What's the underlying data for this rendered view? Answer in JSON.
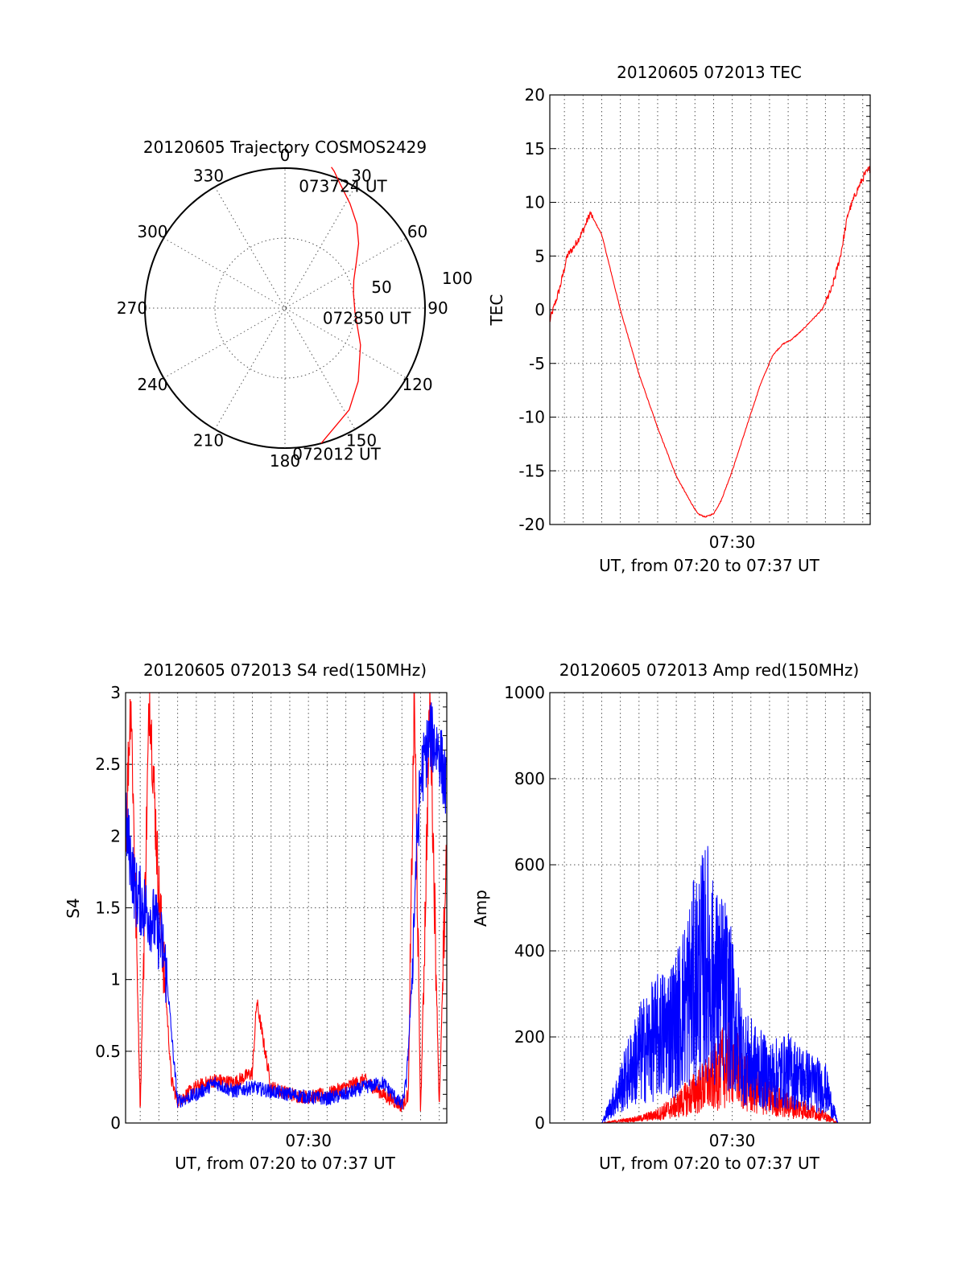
{
  "chart_data": [
    {
      "type": "polar",
      "title": "20120605 Trajectory COSMOS2429",
      "azimuth_labels": [
        "0",
        "30",
        "60",
        "90",
        "120",
        "150",
        "180",
        "210",
        "240",
        "270",
        "300",
        "330"
      ],
      "radius_labels": [
        "50",
        "100"
      ],
      "rlim": [
        0,
        100
      ],
      "grid": true,
      "series": [
        {
          "color": "#ff0000",
          "azimuth": [
            165.0,
            147.8,
            135.0,
            116.0,
            93.0,
            78.0,
            68.0,
            56.8,
            48.7,
            40.5,
            31.8,
            24.0,
            19.7,
            18.2
          ],
          "radius": [
            100,
            86,
            74,
            60,
            50,
            50,
            53,
            61,
            70,
            79,
            88,
            97,
            104,
            106
          ]
        }
      ],
      "annotations": [
        {
          "text": "073724 UT",
          "azimuth": 26,
          "radius": 97
        },
        {
          "text": "072850 UT",
          "azimuth": 97,
          "radius": 60
        },
        {
          "text": "072012 UT",
          "azimuth": 160,
          "radius": 111
        }
      ]
    },
    {
      "type": "line",
      "title": "20120605 072013 TEC",
      "xlabel": "UT, from 07:20 to 07:37 UT",
      "ylabel": "TEC",
      "xlim": [
        "07:20:13",
        "07:37:24"
      ],
      "x_tick_labels": [
        "07:30"
      ],
      "ylim": [
        -20,
        20
      ],
      "yticks": [
        -20,
        -15,
        -10,
        -5,
        0,
        5,
        10,
        15,
        20
      ],
      "grid": true,
      "series": [
        {
          "color": "#ff0000",
          "x": [
            "07:20:13",
            "07:20:45",
            "07:21:09",
            "07:21:34",
            "07:22:02",
            "07:22:23",
            "07:23:00",
            "07:24:00",
            "07:25:00",
            "07:26:00",
            "07:27:00",
            "07:27:44",
            "07:28:09",
            "07:28:33",
            "07:29:00",
            "07:29:24",
            "07:30:00",
            "07:30:45",
            "07:31:30",
            "07:32:11",
            "07:32:43",
            "07:33:10",
            "07:33:42",
            "07:34:15",
            "07:34:49",
            "07:35:21",
            "07:35:48",
            "07:36:13",
            "07:36:40",
            "07:37:05",
            "07:37:24"
          ],
          "y": [
            -1,
            2,
            5,
            6,
            7.5,
            9,
            7,
            0,
            -6,
            -11,
            -15.5,
            -17.8,
            -19,
            -19.3,
            -19,
            -17.8,
            -15,
            -11,
            -7,
            -4.2,
            -3.2,
            -2.8,
            -2,
            -1,
            0,
            2,
            5,
            9,
            11,
            12.5,
            13.2
          ]
        }
      ]
    },
    {
      "type": "line",
      "title": "20120605 072013 S4 red(150MHz)",
      "xlabel": "UT, from 07:20 to 07:37 UT",
      "ylabel": "S4",
      "xlim": [
        "07:20:13",
        "07:37:24"
      ],
      "x_tick_labels": [
        "07:30"
      ],
      "ylim": [
        0,
        3
      ],
      "yticks": [
        0,
        0.5,
        1,
        1.5,
        2,
        2.5,
        3
      ],
      "grid": true,
      "series": [
        {
          "color": "#ff0000",
          "x": [
            "07:20:13",
            "07:20:30",
            "07:21:00",
            "07:21:30",
            "07:22:00",
            "07:22:25",
            "07:22:40",
            "07:23:00",
            "07:24:00",
            "07:25:00",
            "07:26:00",
            "07:27:00",
            "07:27:14",
            "07:28:00",
            "07:29:00",
            "07:30:00",
            "07:31:00",
            "07:32:00",
            "07:33:00",
            "07:34:00",
            "07:35:00",
            "07:35:21",
            "07:35:40",
            "07:36:00",
            "07:36:30",
            "07:37:00",
            "07:37:24"
          ],
          "y": [
            2.0,
            3.0,
            0.1,
            3.0,
            1.6,
            0.8,
            0.3,
            0.15,
            0.25,
            0.3,
            0.28,
            0.35,
            0.85,
            0.25,
            0.2,
            0.18,
            0.2,
            0.25,
            0.3,
            0.2,
            0.12,
            0.2,
            3.0,
            0.05,
            3.0,
            0.1,
            2.0
          ]
        },
        {
          "color": "#0000ff",
          "x": [
            "07:20:13",
            "07:20:45",
            "07:21:15",
            "07:21:45",
            "07:22:15",
            "07:22:30",
            "07:22:45",
            "07:23:00",
            "07:24:00",
            "07:25:00",
            "07:26:00",
            "07:27:00",
            "07:28:00",
            "07:29:00",
            "07:30:00",
            "07:31:00",
            "07:32:00",
            "07:33:00",
            "07:34:00",
            "07:35:00",
            "07:35:15",
            "07:35:30",
            "07:35:45",
            "07:36:00",
            "07:36:30",
            "07:37:00",
            "07:37:24"
          ],
          "y": [
            2.1,
            1.6,
            1.5,
            1.4,
            1.2,
            0.9,
            0.5,
            0.15,
            0.2,
            0.28,
            0.22,
            0.25,
            0.22,
            0.2,
            0.18,
            0.17,
            0.2,
            0.25,
            0.28,
            0.12,
            0.3,
            0.9,
            1.8,
            2.4,
            2.7,
            2.6,
            2.3
          ]
        }
      ]
    },
    {
      "type": "line",
      "title": "20120605 072013 Amp red(150MHz)",
      "xlabel": "UT, from 07:20 to 07:37 UT",
      "ylabel": "Amp",
      "xlim": [
        "07:20:13",
        "07:37:24"
      ],
      "x_tick_labels": [
        "07:30"
      ],
      "ylim": [
        0,
        1000
      ],
      "yticks": [
        0,
        200,
        400,
        600,
        800,
        1000
      ],
      "grid": true,
      "series": [
        {
          "color": "#ff0000",
          "x": [
            "07:20:13",
            "07:22:00",
            "07:23:00",
            "07:24:00",
            "07:25:00",
            "07:26:00",
            "07:27:00",
            "07:28:00",
            "07:29:00",
            "07:29:30",
            "07:30:00",
            "07:30:30",
            "07:31:00",
            "07:32:00",
            "07:33:00",
            "07:34:00",
            "07:35:00",
            "07:35:40",
            "07:36:00",
            "07:37:24"
          ],
          "y": [
            0,
            0,
            0,
            5,
            10,
            20,
            40,
            70,
            100,
            130,
            150,
            110,
            80,
            60,
            40,
            30,
            15,
            0,
            0,
            0
          ]
        },
        {
          "color": "#0000ff",
          "x": [
            "07:20:13",
            "07:22:00",
            "07:23:00",
            "07:23:30",
            "07:24:00",
            "07:25:00",
            "07:26:00",
            "07:27:00",
            "07:28:00",
            "07:28:40",
            "07:29:00",
            "07:29:40",
            "07:30:00",
            "07:30:40",
            "07:31:00",
            "07:32:00",
            "07:33:00",
            "07:34:00",
            "07:35:00",
            "07:35:40",
            "07:36:00",
            "07:37:24"
          ],
          "y": [
            0,
            0,
            0,
            40,
            80,
            160,
            200,
            230,
            330,
            380,
            320,
            300,
            250,
            150,
            140,
            110,
            120,
            100,
            80,
            0,
            0,
            0
          ]
        }
      ]
    }
  ]
}
